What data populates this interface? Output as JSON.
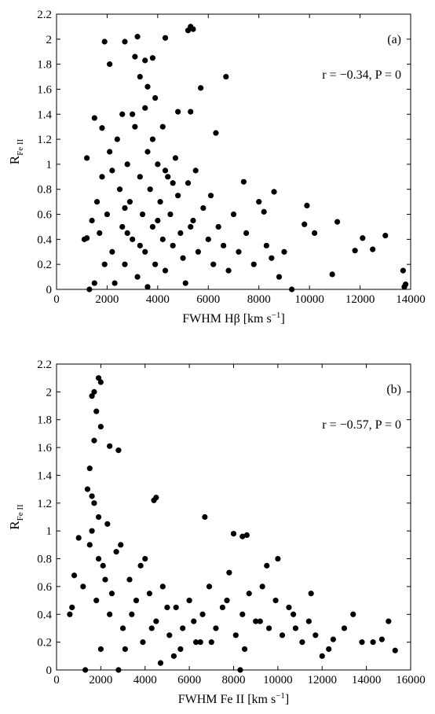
{
  "chart_data": [
    {
      "type": "scatter",
      "color": "#000000",
      "annotation_label": "(a)",
      "annotation_stats": "r = −0.34, P = 0",
      "ylabel": "R",
      "ylabel_sub": "Fe II",
      "xlabel_parts": [
        "FWHM Hβ [km s",
        "−1",
        "]"
      ],
      "xlim": [
        0,
        14000
      ],
      "xticks": [
        0,
        2000,
        4000,
        6000,
        8000,
        10000,
        12000,
        14000
      ],
      "ylim": [
        0,
        2.2
      ],
      "yticks": [
        0,
        0.2,
        0.4,
        0.6,
        0.8,
        1,
        1.2,
        1.4,
        1.6,
        1.8,
        2,
        2.2
      ],
      "x": [
        1900,
        2700,
        3200,
        3100,
        3500,
        3800,
        4300,
        5300,
        5200,
        5400,
        2100,
        3300,
        3600,
        5700,
        6700,
        3900,
        6300,
        4800,
        5300,
        9900,
        10200,
        10900,
        11100,
        11800,
        12100,
        12500,
        13000,
        13700,
        13750,
        13800,
        8600,
        7400,
        9800,
        9300,
        9000,
        8200,
        1200,
        1300,
        1100,
        1500,
        1200,
        1500,
        1800,
        1800,
        2000,
        2200,
        2400,
        2500,
        2600,
        2700,
        2800,
        2900,
        3000,
        3100,
        3200,
        3300,
        3400,
        3500,
        3600,
        3700,
        3800,
        3900,
        4000,
        4100,
        4200,
        4300,
        4400,
        4500,
        4600,
        4700,
        4800,
        4900,
        5000,
        5200,
        5400,
        5600,
        5800,
        6000,
        6200,
        6400,
        6600,
        6800,
        7000,
        7200,
        7500,
        7800,
        8000,
        8300,
        8500,
        8800,
        2100,
        2300,
        1600,
        1700,
        1900,
        2600,
        3000,
        3500,
        4200,
        3800,
        2200,
        2700,
        3300,
        4000,
        4600,
        5100,
        5500,
        6100,
        3600,
        2800,
        1400,
        4300,
        5300
      ],
      "values": [
        1.98,
        1.98,
        2.02,
        1.86,
        1.83,
        1.85,
        2.01,
        2.1,
        2.07,
        2.08,
        1.8,
        1.7,
        1.62,
        1.61,
        1.7,
        1.53,
        1.25,
        1.42,
        1.42,
        0.67,
        0.45,
        0.12,
        0.54,
        0.31,
        0.41,
        0.32,
        0.43,
        0.15,
        0.02,
        0.04,
        0.78,
        0.86,
        0.52,
        0.0,
        0.3,
        0.62,
        0.41,
        0.0,
        0.4,
        0.05,
        1.05,
        1.37,
        1.29,
        0.9,
        0.6,
        0.3,
        1.2,
        0.8,
        0.5,
        0.2,
        1.0,
        0.7,
        0.4,
        1.3,
        0.1,
        0.9,
        0.6,
        0.3,
        1.1,
        0.8,
        0.5,
        0.2,
        1.0,
        0.7,
        0.4,
        0.15,
        0.9,
        0.6,
        0.35,
        1.05,
        0.75,
        0.45,
        0.25,
        0.85,
        0.55,
        0.3,
        0.65,
        0.4,
        0.2,
        0.5,
        0.35,
        0.15,
        0.6,
        0.3,
        0.45,
        0.2,
        0.7,
        0.35,
        0.25,
        0.1,
        1.1,
        0.05,
        0.7,
        0.45,
        0.2,
        1.4,
        1.4,
        1.45,
        1.3,
        1.2,
        0.95,
        0.65,
        0.35,
        0.55,
        0.85,
        0.05,
        0.95,
        0.75,
        0.02,
        0.45,
        0.55,
        0.95,
        0.5
      ]
    },
    {
      "type": "scatter",
      "color": "#000000",
      "annotation_label": "(b)",
      "annotation_stats": "r = −0.57, P = 0",
      "ylabel": "R",
      "ylabel_sub": "Fe II",
      "xlabel_parts": [
        "FWHM Fe II [km s",
        "−1",
        "]"
      ],
      "xlim": [
        0,
        16000
      ],
      "xticks": [
        0,
        2000,
        4000,
        6000,
        8000,
        10000,
        12000,
        14000,
        16000
      ],
      "ylim": [
        0,
        2.2
      ],
      "yticks": [
        0,
        0.2,
        0.4,
        0.6,
        0.8,
        1,
        1.2,
        1.4,
        1.6,
        1.8,
        2,
        2.2
      ],
      "x": [
        1700,
        1900,
        2000,
        1600,
        1800,
        2000,
        1700,
        2400,
        2800,
        4400,
        4500,
        6700,
        8000,
        8400,
        8600,
        700,
        600,
        800,
        1000,
        14700,
        15000,
        15300,
        14300,
        13400,
        13000,
        12500,
        12000,
        1300,
        2800,
        4700,
        8300,
        1500,
        1600,
        1900,
        1400,
        1200,
        1500,
        1800,
        2100,
        2400,
        2700,
        3000,
        3300,
        3600,
        3900,
        4200,
        4500,
        4800,
        5100,
        5400,
        5700,
        6000,
        6300,
        6600,
        6900,
        7200,
        7500,
        7800,
        8100,
        8400,
        8700,
        9000,
        9300,
        9600,
        9900,
        10200,
        10500,
        10800,
        11100,
        11400,
        11700,
        1600,
        1900,
        2200,
        2500,
        2900,
        3400,
        3800,
        4300,
        5000,
        5600,
        6200,
        7000,
        7700,
        8500,
        9200,
        10000,
        10700,
        11500,
        1700,
        2000,
        2300,
        3100,
        4000,
        5300,
        6500,
        9500,
        12300,
        13800
      ],
      "values": [
        2.0,
        2.1,
        2.07,
        1.97,
        1.86,
        1.75,
        1.65,
        1.61,
        1.58,
        1.22,
        1.24,
        1.1,
        0.98,
        0.96,
        0.97,
        0.45,
        0.4,
        0.68,
        0.95,
        0.22,
        0.35,
        0.14,
        0.2,
        0.4,
        0.3,
        0.22,
        0.1,
        0.0,
        0.0,
        0.05,
        0.0,
        1.45,
        1.25,
        1.1,
        1.3,
        0.6,
        0.9,
        0.5,
        0.75,
        0.4,
        0.85,
        0.3,
        0.65,
        0.5,
        0.2,
        0.55,
        0.35,
        0.6,
        0.25,
        0.45,
        0.3,
        0.5,
        0.2,
        0.4,
        0.6,
        0.3,
        0.45,
        0.7,
        0.25,
        0.4,
        0.55,
        0.35,
        0.6,
        0.3,
        0.5,
        0.25,
        0.45,
        0.3,
        0.2,
        0.35,
        0.25,
        1.0,
        0.8,
        0.65,
        0.55,
        0.9,
        0.4,
        0.75,
        0.3,
        0.45,
        0.15,
        0.35,
        0.2,
        0.5,
        0.15,
        0.35,
        0.8,
        0.4,
        0.55,
        1.2,
        0.15,
        1.05,
        0.15,
        0.8,
        0.1,
        0.2,
        0.75,
        0.15,
        0.2
      ]
    }
  ]
}
